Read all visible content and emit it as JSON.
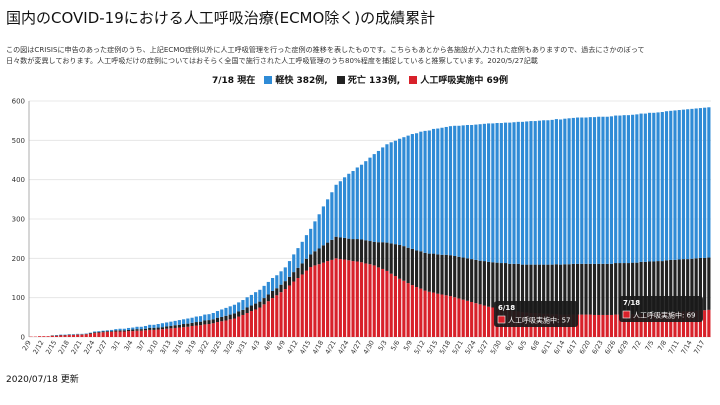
{
  "title": "国内のCOVID-19における人工呼吸治療(ECMO除く)の成績累計",
  "description": [
    "この図はCRISISに申告のあった症例のうち、上記ECMO症例以外に人工呼吸管理を行った症例の推移を表したものです。こちらもあとから各施設が入力された症例もありますので、過去にさかのぼって",
    "日々数が変異しております。人工呼吸だけの症例についてはおそらく全国で施行された人工呼吸管理のうち80%程度を捕捉していると推察しています。2020/5/27記載"
  ],
  "legend": {
    "date_label": "7/18 現在",
    "items": [
      {
        "label": "軽快 382例,",
        "color": "#2f8bd6"
      },
      {
        "label": "死亡 133例,",
        "color": "#222222"
      },
      {
        "label": "人工呼吸実施中 69例",
        "color": "#d8212a"
      }
    ]
  },
  "footer": "2020/07/18 更新",
  "tooltips": [
    {
      "title": "6/18",
      "text": "人工呼吸実施中: 57"
    },
    {
      "title": "7/18",
      "text": "人工呼吸実施中: 69"
    }
  ],
  "chart_data": {
    "type": "bar",
    "stacked": true,
    "x_start": "2/9",
    "x_end": "7/18",
    "x_tick_labels": [
      "2/9",
      "2/12",
      "2/15",
      "2/18",
      "2/21",
      "2/24",
      "2/27",
      "3/1",
      "3/4",
      "3/7",
      "3/10",
      "3/13",
      "3/16",
      "3/19",
      "3/22",
      "3/25",
      "3/28",
      "3/31",
      "4/3",
      "4/6",
      "4/9",
      "4/12",
      "4/15",
      "4/18",
      "4/21",
      "4/24",
      "4/27",
      "4/30",
      "5/3",
      "5/6",
      "5/9",
      "5/12",
      "5/15",
      "5/18",
      "5/21",
      "5/24",
      "5/27",
      "5/30",
      "6/2",
      "6/5",
      "6/8",
      "6/11",
      "6/14",
      "6/17",
      "6/20",
      "6/23",
      "6/26",
      "6/29",
      "7/2",
      "7/5",
      "7/8",
      "7/11",
      "7/14",
      "7/17"
    ],
    "ylim": [
      0,
      600
    ],
    "y_ticks": [
      0,
      100,
      200,
      300,
      400,
      500,
      600
    ],
    "grid": true,
    "series": [
      {
        "name": "人工呼吸実施中",
        "color": "#d8212a",
        "points": [
          [
            "2/9",
            1
          ],
          [
            "2/15",
            3
          ],
          [
            "2/21",
            6
          ],
          [
            "2/27",
            13
          ],
          [
            "3/4",
            15
          ],
          [
            "3/10",
            19
          ],
          [
            "3/16",
            25
          ],
          [
            "3/22",
            33
          ],
          [
            "3/28",
            47
          ],
          [
            "4/3",
            75
          ],
          [
            "4/9",
            122
          ],
          [
            "4/15",
            178
          ],
          [
            "4/21",
            200
          ],
          [
            "4/24",
            195
          ],
          [
            "4/27",
            190
          ],
          [
            "4/30",
            182
          ],
          [
            "5/3",
            168
          ],
          [
            "5/6",
            148
          ],
          [
            "5/9",
            132
          ],
          [
            "5/12",
            118
          ],
          [
            "5/15",
            110
          ],
          [
            "5/18",
            104
          ],
          [
            "5/21",
            95
          ],
          [
            "5/24",
            86
          ],
          [
            "5/27",
            77
          ],
          [
            "5/30",
            70
          ],
          [
            "6/2",
            66
          ],
          [
            "6/5",
            62
          ],
          [
            "6/8",
            60
          ],
          [
            "6/11",
            58
          ],
          [
            "6/14",
            57
          ],
          [
            "6/18",
            57
          ],
          [
            "6/23",
            56
          ],
          [
            "6/29",
            57
          ],
          [
            "7/5",
            60
          ],
          [
            "7/11",
            64
          ],
          [
            "7/18",
            69
          ]
        ]
      },
      {
        "name": "死亡",
        "color": "#222222",
        "points": [
          [
            "2/9",
            0
          ],
          [
            "2/27",
            2
          ],
          [
            "3/10",
            5
          ],
          [
            "3/22",
            10
          ],
          [
            "4/3",
            15
          ],
          [
            "4/9",
            20
          ],
          [
            "4/15",
            32
          ],
          [
            "4/21",
            55
          ],
          [
            "4/24",
            55
          ],
          [
            "4/27",
            58
          ],
          [
            "4/30",
            60
          ],
          [
            "5/3",
            72
          ],
          [
            "5/6",
            86
          ],
          [
            "5/9",
            92
          ],
          [
            "5/12",
            96
          ],
          [
            "5/15",
            100
          ],
          [
            "5/18",
            104
          ],
          [
            "5/21",
            107
          ],
          [
            "5/24",
            110
          ],
          [
            "5/27",
            114
          ],
          [
            "5/30",
            118
          ],
          [
            "6/2",
            120
          ],
          [
            "6/5",
            122
          ],
          [
            "6/8",
            124
          ],
          [
            "6/11",
            126
          ],
          [
            "6/14",
            128
          ],
          [
            "6/18",
            129
          ],
          [
            "6/23",
            130
          ],
          [
            "6/29",
            131
          ],
          [
            "7/5",
            132
          ],
          [
            "7/11",
            133
          ],
          [
            "7/18",
            133
          ]
        ]
      },
      {
        "name": "軽快",
        "color": "#2f8bd6",
        "points": [
          [
            "2/9",
            0
          ],
          [
            "2/21",
            1
          ],
          [
            "2/27",
            2
          ],
          [
            "3/4",
            5
          ],
          [
            "3/10",
            9
          ],
          [
            "3/16",
            12
          ],
          [
            "3/22",
            15
          ],
          [
            "3/28",
            22
          ],
          [
            "4/3",
            30
          ],
          [
            "4/9",
            35
          ],
          [
            "4/15",
            65
          ],
          [
            "4/21",
            132
          ],
          [
            "4/24",
            165
          ],
          [
            "4/27",
            190
          ],
          [
            "4/30",
            223
          ],
          [
            "5/3",
            250
          ],
          [
            "5/6",
            270
          ],
          [
            "5/9",
            292
          ],
          [
            "5/12",
            310
          ],
          [
            "5/15",
            320
          ],
          [
            "5/18",
            328
          ],
          [
            "5/21",
            336
          ],
          [
            "5/24",
            344
          ],
          [
            "5/27",
            352
          ],
          [
            "5/30",
            356
          ],
          [
            "6/2",
            360
          ],
          [
            "6/5",
            364
          ],
          [
            "6/8",
            366
          ],
          [
            "6/11",
            368
          ],
          [
            "6/14",
            370
          ],
          [
            "6/18",
            372
          ],
          [
            "6/23",
            374
          ],
          [
            "6/29",
            376
          ],
          [
            "7/5",
            378
          ],
          [
            "7/11",
            380
          ],
          [
            "7/18",
            382
          ]
        ]
      }
    ]
  }
}
